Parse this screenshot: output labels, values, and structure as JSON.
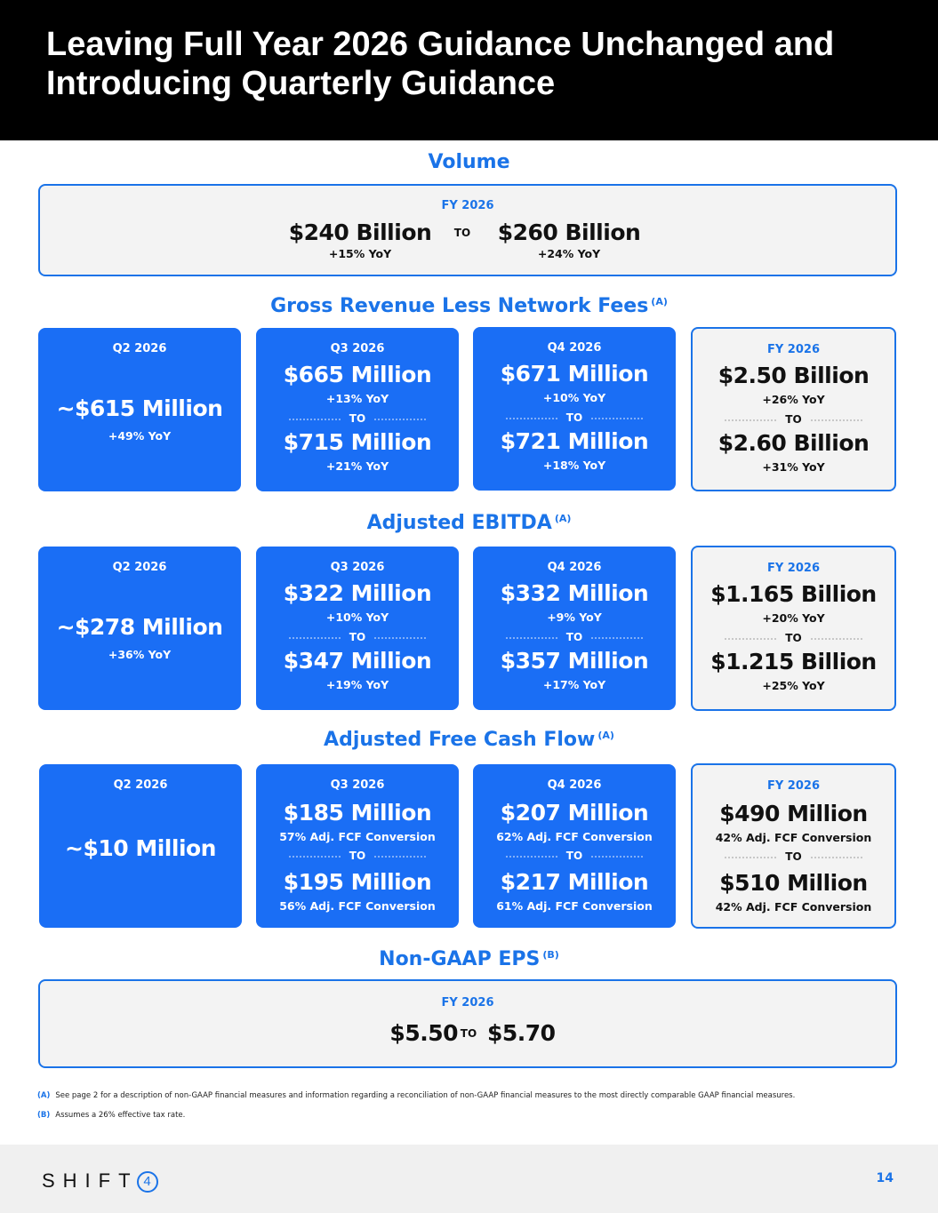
{
  "header": {
    "title": "Leaving Full Year 2026 Guidance Unchanged and Introducing Quarterly Guidance"
  },
  "volume": {
    "title": "Volume",
    "period": "FY 2026",
    "low": "$240 Billion",
    "low_yoy": "+15% YoY",
    "to": "TO",
    "high": "$260 Billion",
    "high_yoy": "+24% YoY"
  },
  "revenue": {
    "title": "Gross Revenue Less Network Fees",
    "note": "(A)",
    "cards": [
      {
        "period": "Q2 2026",
        "value": "~$615 Million",
        "sub": "+49% YoY"
      },
      {
        "period": "Q3 2026",
        "low": "$665 Million",
        "low_sub": "+13% YoY",
        "to": "TO",
        "high": "$715 Million",
        "high_sub": "+21% YoY"
      },
      {
        "period": "Q4 2026",
        "low": "$671 Million",
        "low_sub": "+10% YoY",
        "to": "TO",
        "high": "$721 Million",
        "high_sub": "+18% YoY"
      },
      {
        "period": "FY 2026",
        "low": "$2.50 Billion",
        "low_sub": "+26% YoY",
        "to": "TO",
        "high": "$2.60 Billion",
        "high_sub": "+31% YoY"
      }
    ]
  },
  "ebitda": {
    "title": "Adjusted EBITDA",
    "note": "(A)",
    "cards": [
      {
        "period": "Q2 2026",
        "value": "~$278 Million",
        "sub": "+36% YoY"
      },
      {
        "period": "Q3 2026",
        "low": "$322 Million",
        "low_sub": "+10% YoY",
        "to": "TO",
        "high": "$347 Million",
        "high_sub": "+19% YoY"
      },
      {
        "period": "Q4 2026",
        "low": "$332 Million",
        "low_sub": "+9% YoY",
        "to": "TO",
        "high": "$357 Million",
        "high_sub": "+17% YoY"
      },
      {
        "period": "FY 2026",
        "low": "$1.165 Billion",
        "low_sub": "+20% YoY",
        "to": "TO",
        "high": "$1.215 Billion",
        "high_sub": "+25% YoY"
      }
    ]
  },
  "fcf": {
    "title": "Adjusted Free Cash Flow",
    "note": "(A)",
    "cards": [
      {
        "period": "Q2 2026",
        "value": "~$10 Million"
      },
      {
        "period": "Q3 2026",
        "low": "$185 Million",
        "low_sub": "57% Adj. FCF Conversion",
        "to": "TO",
        "high": "$195 Million",
        "high_sub": "56% Adj. FCF Conversion"
      },
      {
        "period": "Q4 2026",
        "low": "$207 Million",
        "low_sub": "62% Adj. FCF Conversion",
        "to": "TO",
        "high": "$217 Million",
        "high_sub": "61% Adj. FCF Conversion"
      },
      {
        "period": "FY 2026",
        "low": "$490 Million",
        "low_sub": "42% Adj. FCF Conversion",
        "to": "TO",
        "high": "$510 Million",
        "high_sub": "42% Adj. FCF Conversion"
      }
    ]
  },
  "eps": {
    "title": "Non-GAAP EPS",
    "note": "(B)",
    "period": "FY 2026",
    "low": "$5.50",
    "to": "TO",
    "high": "$5.70"
  },
  "footnotes": [
    {
      "mark": "(A)",
      "text": "See page 2 for a description of non-GAAP financial measures and information regarding a reconciliation of non-GAAP financial measures to the most directly comparable GAAP financial measures."
    },
    {
      "mark": "(B)",
      "text": "Assumes a 26% effective tax rate."
    }
  ],
  "footer": {
    "logo_text": "SHIFT",
    "logo_number": "4",
    "page_number": "14"
  },
  "colors": {
    "accent": "#1a73e8",
    "card_blue": "#1a6ef5",
    "header_bg": "#000000"
  }
}
